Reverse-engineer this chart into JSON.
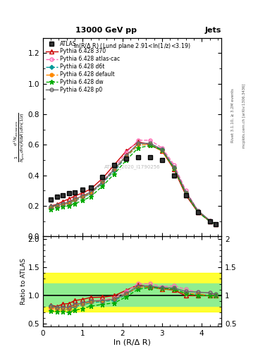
{
  "title_top": "13000 GeV pp",
  "title_right": "Jets",
  "plot_title": "ln(R/Δ R) (Lund plane 2.91<ln(1/z)<3.19)",
  "ylabel_main": "$\\frac{1}{N_{jets}}\\frac{d^2 N_{emissions}}{d\\ln(R/\\Delta R)\\,d\\ln(1/z)}$",
  "ylabel_ratio": "Ratio to ATLAS",
  "xlabel": "ln (R/Δ R)",
  "watermark": "ATLAS_2020_I1790256",
  "right_label": "Rivet 3.1.10, ≥ 3.2M events",
  "right_label2": "mcplots.cern.ch [arXiv:1306.3436]",
  "x_atlas": [
    0.2,
    0.35,
    0.5,
    0.65,
    0.8,
    1.0,
    1.2,
    1.5,
    1.8,
    2.1,
    2.4,
    2.7,
    3.0,
    3.3,
    3.6,
    3.9,
    4.2,
    4.35
  ],
  "y_atlas": [
    0.24,
    0.26,
    0.27,
    0.285,
    0.29,
    0.305,
    0.32,
    0.39,
    0.47,
    0.51,
    0.52,
    0.52,
    0.5,
    0.4,
    0.27,
    0.16,
    0.1,
    0.08
  ],
  "x_370": [
    0.2,
    0.35,
    0.5,
    0.65,
    0.8,
    1.0,
    1.2,
    1.5,
    1.8,
    2.1,
    2.4,
    2.7,
    3.0,
    3.3,
    3.6,
    3.9,
    4.2,
    4.35
  ],
  "y_370": [
    0.2,
    0.21,
    0.23,
    0.245,
    0.265,
    0.285,
    0.31,
    0.38,
    0.47,
    0.56,
    0.62,
    0.6,
    0.56,
    0.44,
    0.27,
    0.16,
    0.1,
    0.08
  ],
  "x_atl_cac": [
    0.2,
    0.35,
    0.5,
    0.65,
    0.8,
    1.0,
    1.2,
    1.5,
    1.8,
    2.1,
    2.4,
    2.7,
    3.0,
    3.3,
    3.6,
    3.9,
    4.2,
    4.35
  ],
  "y_atl_cac": [
    0.185,
    0.2,
    0.21,
    0.225,
    0.245,
    0.265,
    0.29,
    0.36,
    0.45,
    0.55,
    0.63,
    0.63,
    0.58,
    0.47,
    0.3,
    0.17,
    0.105,
    0.08
  ],
  "x_d6t": [
    0.2,
    0.35,
    0.5,
    0.65,
    0.8,
    1.0,
    1.2,
    1.5,
    1.8,
    2.1,
    2.4,
    2.7,
    3.0,
    3.3,
    3.6,
    3.9,
    4.2,
    4.35
  ],
  "y_d6t": [
    0.195,
    0.2,
    0.205,
    0.215,
    0.235,
    0.255,
    0.28,
    0.35,
    0.43,
    0.52,
    0.6,
    0.6,
    0.57,
    0.45,
    0.28,
    0.165,
    0.1,
    0.08
  ],
  "x_default": [
    0.2,
    0.35,
    0.5,
    0.65,
    0.8,
    1.0,
    1.2,
    1.5,
    1.8,
    2.1,
    2.4,
    2.7,
    3.0,
    3.3,
    3.6,
    3.9,
    4.2,
    4.35
  ],
  "y_default": [
    0.19,
    0.2,
    0.205,
    0.22,
    0.24,
    0.26,
    0.285,
    0.355,
    0.44,
    0.525,
    0.6,
    0.6,
    0.56,
    0.445,
    0.28,
    0.165,
    0.1,
    0.08
  ],
  "x_dw": [
    0.2,
    0.35,
    0.5,
    0.65,
    0.8,
    1.0,
    1.2,
    1.5,
    1.8,
    2.1,
    2.4,
    2.7,
    3.0,
    3.3,
    3.6,
    3.9,
    4.2,
    4.35
  ],
  "y_dw": [
    0.175,
    0.185,
    0.195,
    0.2,
    0.215,
    0.235,
    0.26,
    0.33,
    0.41,
    0.5,
    0.58,
    0.595,
    0.565,
    0.445,
    0.28,
    0.16,
    0.1,
    0.08
  ],
  "x_p0": [
    0.2,
    0.35,
    0.5,
    0.65,
    0.8,
    1.0,
    1.2,
    1.5,
    1.8,
    2.1,
    2.4,
    2.7,
    3.0,
    3.3,
    3.6,
    3.9,
    4.2,
    4.35
  ],
  "y_p0": [
    0.195,
    0.205,
    0.215,
    0.225,
    0.245,
    0.265,
    0.29,
    0.355,
    0.44,
    0.53,
    0.61,
    0.61,
    0.57,
    0.455,
    0.29,
    0.17,
    0.105,
    0.082
  ],
  "color_370": "#cc0000",
  "color_atl_cac": "#ff69b4",
  "color_d6t": "#009999",
  "color_default": "#ff8800",
  "color_dw": "#00aa00",
  "color_p0": "#666666",
  "color_atlas": "#000000",
  "ylim_main": [
    0.0,
    1.3
  ],
  "ylim_ratio": [
    0.45,
    2.05
  ],
  "xlim": [
    0.0,
    4.5
  ],
  "band_yellow_lo": 0.72,
  "band_yellow_hi": 1.4,
  "band_green_lo": 0.82,
  "band_green_hi": 1.22
}
